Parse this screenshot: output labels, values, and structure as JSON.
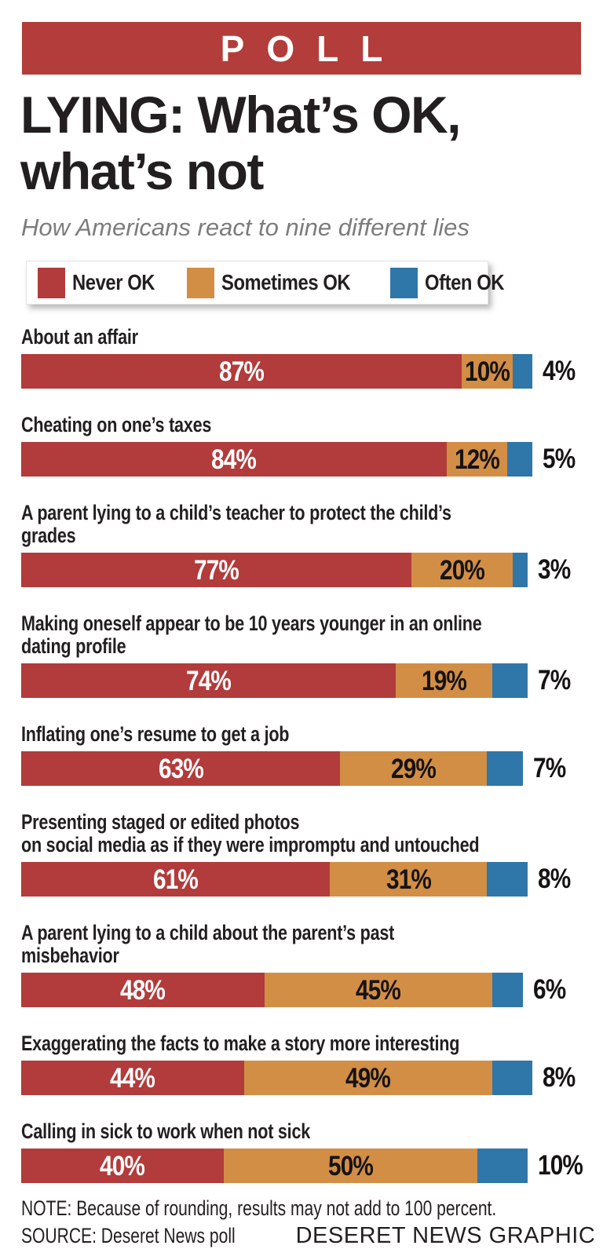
{
  "banner": {
    "label": "POLL"
  },
  "header": {
    "title": "LYING: What’s OK,\nwhat’s not",
    "subtitle": "How Americans react to nine different lies"
  },
  "legend": {
    "items": [
      {
        "label": "Never OK",
        "color": "#b23b3b"
      },
      {
        "label": "Sometimes OK",
        "color": "#d28e45"
      },
      {
        "label": "Often OK",
        "color": "#2f76a9"
      }
    ]
  },
  "chart_data": {
    "type": "bar",
    "variant": "horizontal-stacked",
    "unit": "percent",
    "xlim": [
      0,
      100
    ],
    "grid": false,
    "legend_position": "top",
    "series": [
      "Never OK",
      "Sometimes OK",
      "Often OK"
    ],
    "series_colors": [
      "#b23b3b",
      "#d28e45",
      "#2f76a9"
    ],
    "categories": [
      "About an affair",
      "Cheating on one’s taxes",
      "A parent lying to a child’s teacher to protect the child’s grades",
      "Making oneself appear to be 10 years younger in an online dating profile",
      "Inflating one’s resume to get a job",
      "Presenting staged or edited photos on social media as if they were impromptu and untouched",
      "A parent lying to a child about the parent’s past misbehavior",
      "Exaggerating the facts to make a story more interesting",
      "Calling in sick to work when not sick"
    ],
    "rows": [
      {
        "label_display": "About an affair",
        "values": [
          87,
          10,
          4
        ]
      },
      {
        "label_display": "Cheating on one’s taxes",
        "values": [
          84,
          12,
          5
        ]
      },
      {
        "label_display": "A parent lying to a child’s teacher to protect the child’s grades",
        "values": [
          77,
          20,
          3
        ]
      },
      {
        "label_display": "Making oneself appear to be 10 years younger in an online\ndating profile",
        "values": [
          74,
          19,
          7
        ]
      },
      {
        "label_display": "Inflating one’s resume to get a job",
        "values": [
          63,
          29,
          7
        ]
      },
      {
        "label_display": "Presenting staged or edited photos\non social media as if they were impromptu and untouched",
        "values": [
          61,
          31,
          8
        ]
      },
      {
        "label_display": "A parent lying to a child about the parent’s past misbehavior",
        "values": [
          48,
          45,
          6
        ]
      },
      {
        "label_display": "Exaggerating the facts to make a story more interesting",
        "values": [
          44,
          49,
          8
        ]
      },
      {
        "label_display": "Calling in sick to work when not sick",
        "values": [
          40,
          50,
          10
        ]
      }
    ]
  },
  "footer": {
    "note": "NOTE: Because of rounding, results may not add to 100 percent.",
    "source": "SOURCE: Deseret News poll",
    "credit": "DESERET NEWS GRAPHIC"
  },
  "colors": {
    "banner": "#b33d3a",
    "never_ok": "#b23b3b",
    "sometimes_ok": "#d28e45",
    "often_ok": "#2f76a9",
    "title_text": "#231f20",
    "subtitle_text": "#7c7c7c"
  }
}
